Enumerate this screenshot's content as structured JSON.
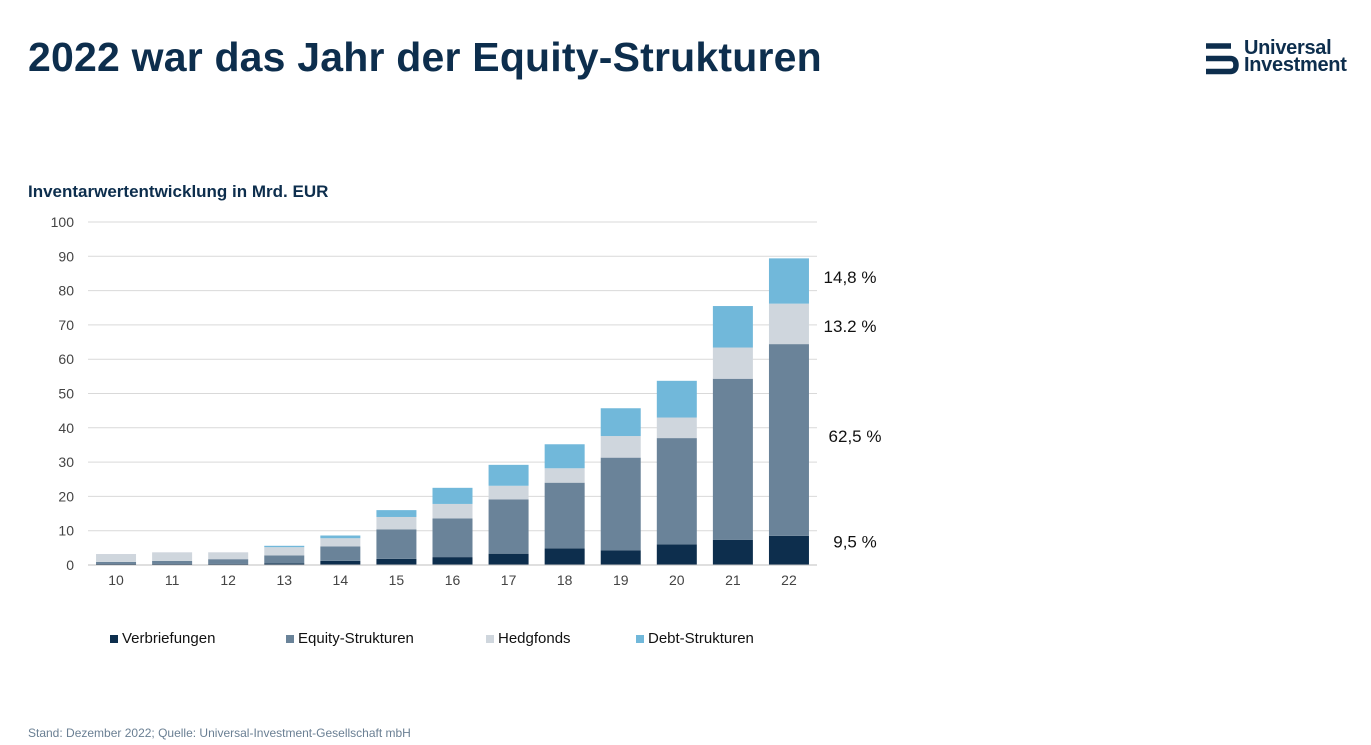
{
  "page": {
    "title": "2022 war das Jahr der Equity-Strukturen",
    "footer": "Stand: Dezember 2022; Quelle: Universal-Investment-Gesellschaft mbH"
  },
  "logo": {
    "line1": "Universal",
    "line2": "Investment",
    "color": "#0d2e4d"
  },
  "chart_data": {
    "type": "bar",
    "stacked": true,
    "title": "Inventarwertentwicklung in Mrd. EUR",
    "xlabel": "",
    "ylabel": "",
    "categories": [
      "10",
      "11",
      "12",
      "13",
      "14",
      "15",
      "16",
      "17",
      "18",
      "19",
      "20",
      "21",
      "22"
    ],
    "ylim": [
      0,
      100
    ],
    "yticks": [
      0,
      10,
      20,
      30,
      40,
      50,
      60,
      70,
      80,
      90,
      100
    ],
    "grid": true,
    "legend_position": "bottom",
    "series": [
      {
        "name": "Verbriefungen",
        "color": "#0d2e4d",
        "values": [
          0.3,
          0.3,
          0.3,
          0.5,
          1.2,
          1.8,
          2.3,
          3.3,
          4.8,
          4.3,
          6.0,
          7.3,
          8.5
        ]
      },
      {
        "name": "Equity-Strukturen",
        "color": "#6a8399",
        "values": [
          0.6,
          0.9,
          1.4,
          2.3,
          4.2,
          8.6,
          11.3,
          15.8,
          19.2,
          27.0,
          31.0,
          47.0,
          55.9
        ]
      },
      {
        "name": "Hedgfonds",
        "color": "#cfd6dd",
        "values": [
          2.3,
          2.5,
          2.0,
          2.4,
          2.4,
          3.6,
          4.2,
          4.0,
          4.2,
          6.3,
          6.0,
          9.1,
          11.8
        ]
      },
      {
        "name": "Debt-Strukturen",
        "color": "#71b8da",
        "values": [
          0,
          0,
          0,
          0.4,
          0.8,
          2.0,
          4.7,
          6.1,
          7.0,
          8.1,
          10.7,
          12.1,
          13.2
        ]
      }
    ],
    "annotations": [
      {
        "series": "Debt-Strukturen",
        "text": "14,8 %"
      },
      {
        "series": "Hedgfonds",
        "text": "13.2 %"
      },
      {
        "series": "Equity-Strukturen",
        "text": "62,5 %"
      },
      {
        "series": "Verbriefungen",
        "text": "9,5 %"
      }
    ]
  }
}
